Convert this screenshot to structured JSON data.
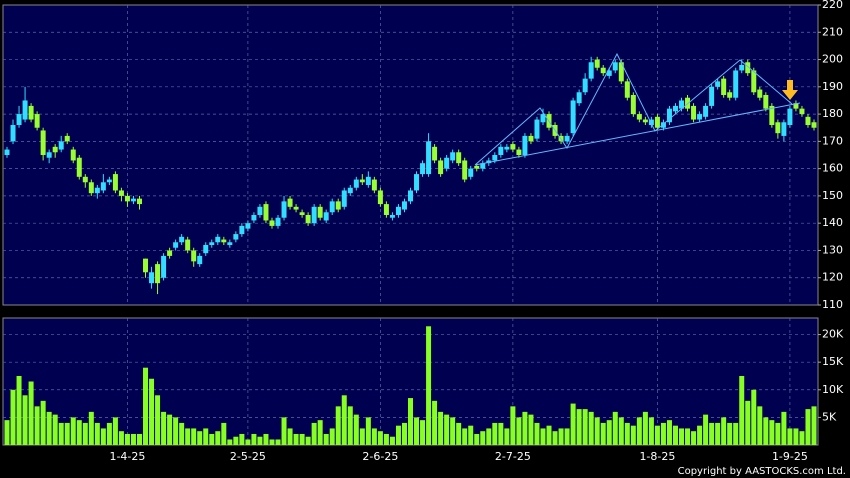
{
  "chart_data": [
    {
      "type": "candlestick",
      "up_color": "#33ddff",
      "down_color": "#99ff33",
      "ylim": [
        110,
        220
      ],
      "yticks": [
        110,
        120,
        130,
        140,
        150,
        160,
        170,
        180,
        190,
        200,
        210,
        220
      ],
      "grid": true,
      "open": [
        165,
        170,
        176,
        178,
        183,
        180,
        174,
        164,
        168,
        167,
        172,
        167,
        164,
        157,
        155,
        151,
        152,
        155,
        158,
        152,
        150,
        148,
        149,
        127,
        118,
        125,
        120,
        130,
        131,
        133,
        134,
        130,
        125,
        129,
        132,
        133,
        134,
        132,
        134,
        136,
        138,
        141,
        143,
        147,
        141,
        139,
        142,
        149,
        146,
        144,
        143,
        140,
        146,
        141,
        144,
        148,
        146,
        151,
        153,
        156,
        154,
        156,
        152,
        147,
        142,
        143,
        145,
        148,
        152,
        158,
        158,
        168,
        163,
        160,
        163,
        166,
        163,
        157,
        161,
        160,
        162,
        163,
        165,
        167,
        169,
        167,
        165,
        172,
        171,
        177,
        180,
        176,
        172,
        170,
        173,
        184,
        188,
        193,
        200,
        197,
        194,
        196,
        199,
        192,
        187,
        180,
        178,
        176,
        179,
        175,
        177,
        181,
        182,
        186,
        183,
        178,
        179,
        183,
        190,
        193,
        188,
        186,
        196,
        199,
        196,
        189,
        187,
        183,
        177,
        172,
        176,
        184,
        182,
        179,
        177
      ],
      "high": [
        168,
        178,
        183,
        190,
        184,
        181,
        175,
        167,
        169,
        172,
        173,
        168,
        165,
        158,
        156,
        154,
        158,
        157,
        159,
        153,
        151,
        150,
        150,
        127,
        124,
        126,
        129,
        131,
        134,
        136,
        135,
        131,
        129,
        133,
        134,
        136,
        135,
        134,
        137,
        140,
        141,
        144,
        147,
        148,
        142,
        143,
        150,
        150,
        147,
        145,
        144,
        147,
        147,
        145,
        149,
        149,
        153,
        154,
        157,
        158,
        159,
        157,
        153,
        148,
        144,
        147,
        149,
        153,
        159,
        163,
        173,
        169,
        164,
        165,
        167,
        167,
        164,
        161,
        162,
        163,
        164,
        166,
        169,
        169,
        170,
        168,
        173,
        173,
        179,
        182,
        181,
        177,
        173,
        173,
        186,
        189,
        195,
        201,
        201,
        198,
        197,
        200,
        200,
        193,
        188,
        181,
        179,
        179,
        180,
        178,
        183,
        184,
        186,
        187,
        184,
        181,
        184,
        191,
        193,
        194,
        189,
        197,
        200,
        200,
        197,
        190,
        188,
        184,
        178,
        178,
        183,
        185,
        183,
        180,
        178
      ],
      "low": [
        164,
        169,
        175,
        177,
        177,
        174,
        163,
        162,
        164,
        166,
        169,
        162,
        156,
        153,
        150,
        149,
        151,
        154,
        151,
        148,
        146,
        147,
        145,
        120,
        116,
        114,
        119,
        127,
        130,
        132,
        129,
        124,
        124,
        128,
        131,
        132,
        132,
        131,
        133,
        135,
        137,
        140,
        142,
        140,
        138,
        138,
        141,
        145,
        144,
        142,
        139,
        139,
        141,
        140,
        143,
        144,
        145,
        150,
        152,
        154,
        153,
        151,
        146,
        142,
        141,
        142,
        144,
        147,
        151,
        157,
        157,
        162,
        157,
        159,
        162,
        161,
        155,
        156,
        159,
        159,
        161,
        162,
        164,
        166,
        166,
        164,
        164,
        169,
        170,
        176,
        174,
        171,
        169,
        169,
        172,
        183,
        187,
        192,
        196,
        194,
        193,
        195,
        191,
        185,
        179,
        177,
        176,
        175,
        174,
        174,
        176,
        180,
        181,
        181,
        177,
        177,
        178,
        182,
        189,
        186,
        185,
        185,
        195,
        194,
        187,
        185,
        181,
        175,
        171,
        170,
        175,
        181,
        179,
        175,
        174
      ],
      "close": [
        167,
        176,
        180,
        185,
        178,
        175,
        165,
        166,
        166,
        170,
        170,
        163,
        157,
        155,
        151,
        153,
        155,
        156,
        152,
        150,
        148,
        149,
        147,
        122,
        122,
        118,
        128,
        128,
        133,
        135,
        130,
        126,
        128,
        132,
        133,
        135,
        133,
        133,
        136,
        139,
        140,
        143,
        146,
        141,
        139,
        142,
        148,
        146,
        145,
        143,
        140,
        146,
        142,
        144,
        148,
        145,
        152,
        153,
        156,
        155,
        157,
        152,
        147,
        143,
        143,
        146,
        148,
        152,
        158,
        162,
        170,
        163,
        158,
        164,
        166,
        162,
        156,
        160,
        160,
        162,
        163,
        165,
        168,
        168,
        167,
        165,
        172,
        170,
        178,
        180,
        175,
        172,
        170,
        172,
        185,
        188,
        193,
        199,
        197,
        195,
        196,
        199,
        192,
        186,
        180,
        178,
        177,
        178,
        175,
        177,
        182,
        183,
        185,
        182,
        178,
        180,
        183,
        190,
        192,
        187,
        186,
        196,
        198,
        195,
        188,
        186,
        182,
        176,
        173,
        177,
        182,
        182,
        180,
        176,
        175
      ]
    },
    {
      "type": "bar",
      "color": "#88ff22",
      "ylim": [
        0,
        23000
      ],
      "yticks": [
        {
          "value": 5000,
          "label": "5K"
        },
        {
          "value": 10000,
          "label": "10K"
        },
        {
          "value": 15000,
          "label": "15K"
        },
        {
          "value": 20000,
          "label": "20K"
        }
      ],
      "grid": true,
      "categories": [
        null,
        null,
        null,
        null,
        null,
        null,
        null,
        null,
        null,
        null,
        null,
        null,
        null,
        null,
        null,
        null,
        null,
        null,
        null,
        null,
        "1-4-25",
        null,
        null,
        null,
        null,
        null,
        null,
        null,
        null,
        null,
        null,
        null,
        null,
        null,
        null,
        null,
        null,
        null,
        null,
        null,
        "2-5-25",
        null,
        null,
        null,
        null,
        null,
        null,
        null,
        null,
        null,
        null,
        null,
        null,
        null,
        null,
        null,
        null,
        null,
        null,
        null,
        null,
        null,
        "2-6-25",
        null,
        null,
        null,
        null,
        null,
        null,
        null,
        null,
        null,
        null,
        null,
        null,
        null,
        null,
        null,
        null,
        null,
        null,
        null,
        null,
        null,
        "2-7-25",
        null,
        null,
        null,
        null,
        null,
        null,
        null,
        null,
        null,
        null,
        null,
        null,
        null,
        null,
        null,
        null,
        null,
        null,
        null,
        null,
        null,
        null,
        null,
        "1-8-25",
        null,
        null,
        null,
        null,
        null,
        null,
        null,
        null,
        null,
        null,
        null,
        null,
        null,
        null,
        null,
        null,
        null,
        null,
        null,
        null,
        null,
        "1-9-25",
        null,
        null,
        null,
        null
      ],
      "values": [
        4500,
        10000,
        12500,
        9000,
        11500,
        7000,
        8000,
        6000,
        5500,
        4000,
        4000,
        5000,
        4500,
        4000,
        6000,
        4000,
        3000,
        4000,
        5000,
        2500,
        2000,
        2000,
        2000,
        14000,
        12000,
        9000,
        6000,
        5500,
        5000,
        4000,
        3000,
        3000,
        2500,
        3000,
        2000,
        2500,
        4000,
        1000,
        1500,
        2000,
        1000,
        2000,
        1500,
        2000,
        1000,
        1000,
        5000,
        3000,
        2000,
        2000,
        1500,
        4000,
        4500,
        2000,
        3000,
        7000,
        9000,
        7000,
        5500,
        3000,
        5000,
        3000,
        2500,
        2000,
        1500,
        3500,
        4000,
        8500,
        5000,
        4500,
        21500,
        8000,
        6000,
        5500,
        5000,
        4000,
        3000,
        3500,
        2000,
        2500,
        3000,
        4000,
        4000,
        3000,
        7000,
        5000,
        6000,
        5500,
        4000,
        3000,
        3500,
        2500,
        3000,
        3000,
        7500,
        6500,
        6500,
        6000,
        5000,
        4000,
        4500,
        6000,
        5000,
        4000,
        3500,
        5000,
        6000,
        5000,
        3500,
        4000,
        4500,
        3500,
        3000,
        3000,
        2500,
        3500,
        5500,
        4000,
        4000,
        5000,
        4000,
        4000,
        12500,
        8000,
        10000,
        7000,
        5000,
        4500,
        4000,
        6000,
        3000,
        3000,
        2500,
        6500,
        7000
      ]
    }
  ],
  "copyright": "Copyright by AASTOCKS.com Ltd."
}
